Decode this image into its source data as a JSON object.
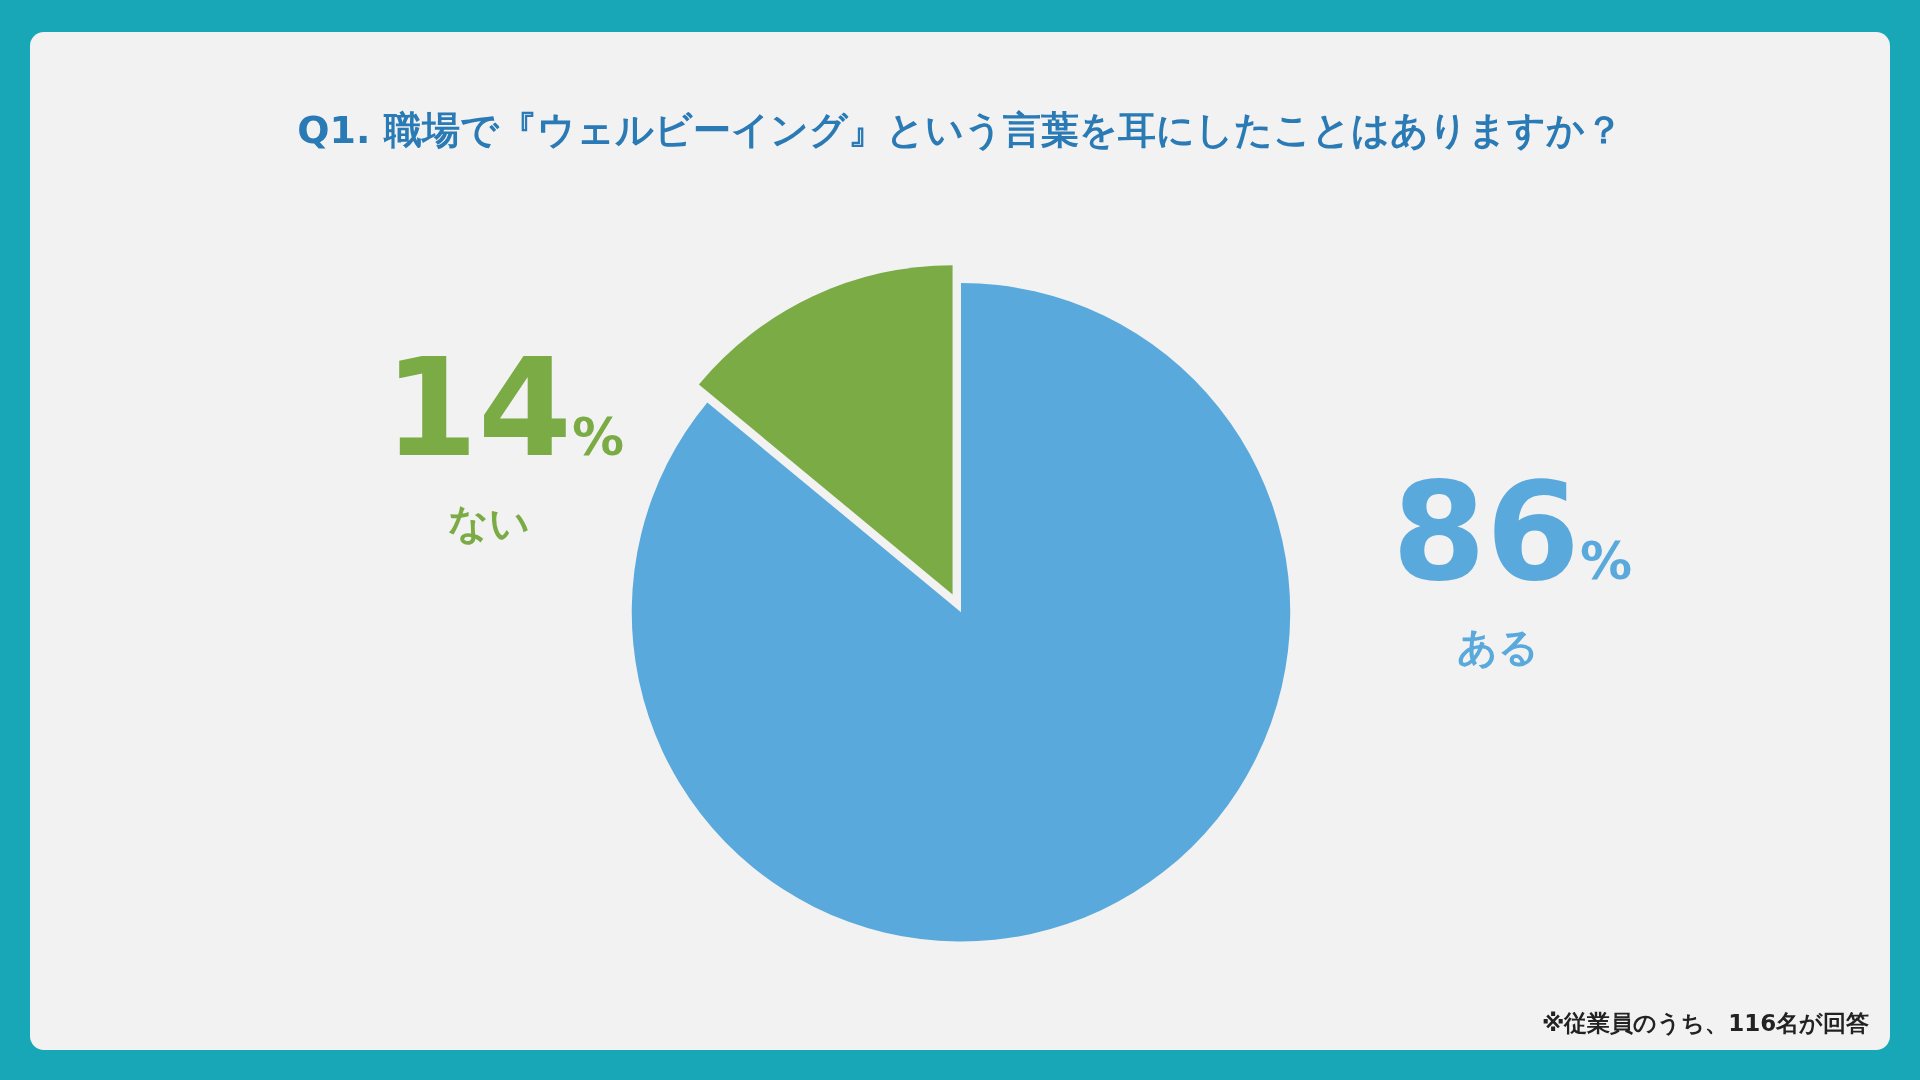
{
  "chart_data": {
    "type": "pie",
    "title": "Q1. 職場で『ウェルビーイング』という言葉を耳にしたことはありますか？",
    "categories": [
      "ある",
      "ない"
    ],
    "values": [
      86,
      14
    ],
    "colors": [
      "#5aa9dc",
      "#7aab45"
    ],
    "value_labels": [
      "86%",
      "14%"
    ],
    "legend": false,
    "annotations": [
      "※従業員のうち、116名が回答"
    ]
  }
}
